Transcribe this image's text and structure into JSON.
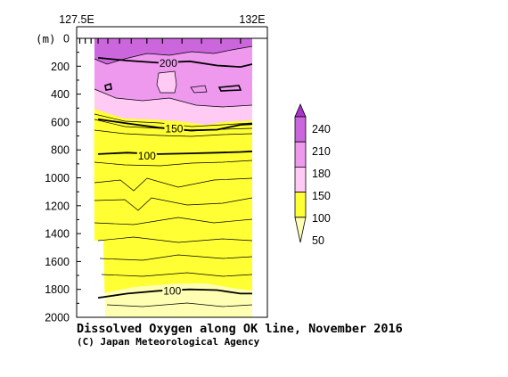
{
  "colors": {
    "band_50": "#ffffb3",
    "band_100": "#ffff33",
    "band_150": "#ffcaf3",
    "band_180": "#ee99ee",
    "band_210": "#cc66dd",
    "band_240": "#aa33cc",
    "no_data": "#ffffff",
    "axis": "#000000"
  },
  "chart_data": {
    "type": "contour",
    "title": "Dissolved Oxygen along OK line, November 2016",
    "credit": "(C) Japan Meteorological Agency",
    "x_axis": {
      "position": "top",
      "range": [
        127.5,
        132
      ],
      "labels": [
        {
          "value": 127.5,
          "label": "127.5E"
        },
        {
          "value": 132,
          "label": "132E"
        }
      ],
      "station_ticks": [
        127.58,
        127.72,
        127.87,
        128.05,
        128.3,
        128.6,
        128.9,
        129.3,
        129.7,
        130.2,
        130.7,
        131.2,
        131.7
      ]
    },
    "y_axis": {
      "unit": "(m)",
      "range": [
        0,
        2000
      ],
      "inverted": true,
      "ticks": [
        0,
        200,
        400,
        600,
        800,
        1000,
        1200,
        1400,
        1600,
        1800,
        2000
      ]
    },
    "colorbar": {
      "levels": [
        50,
        100,
        150,
        180,
        210,
        240
      ],
      "labels": [
        "50",
        "100",
        "150",
        "180",
        "210",
        "240"
      ],
      "triangle_ends": true
    },
    "contour_labels": [
      {
        "text": "200",
        "lon": 129.85,
        "depth": 180
      },
      {
        "text": "150",
        "lon": 130.0,
        "depth": 650
      },
      {
        "text": "100",
        "lon": 129.3,
        "depth": 845
      },
      {
        "text": "100",
        "lon": 129.95,
        "depth": 1810
      }
    ],
    "bold_contours": [
      {
        "value": 200,
        "depth_by_lon": [
          [
            128.05,
            140
          ],
          [
            128.8,
            160
          ],
          [
            129.6,
            175
          ],
          [
            130.4,
            165
          ],
          [
            131.1,
            195
          ],
          [
            131.7,
            205
          ],
          [
            132.0,
            185
          ]
        ]
      },
      {
        "value": 150,
        "depth_by_lon": [
          [
            128.05,
            580
          ],
          [
            128.8,
            610
          ],
          [
            129.6,
            640
          ],
          [
            130.4,
            660
          ],
          [
            131.1,
            655
          ],
          [
            131.7,
            620
          ],
          [
            132.0,
            615
          ]
        ]
      },
      {
        "value": 100,
        "depth_by_lon": [
          [
            128.05,
            830
          ],
          [
            128.8,
            820
          ],
          [
            129.6,
            830
          ],
          [
            130.4,
            825
          ],
          [
            131.1,
            820
          ],
          [
            131.7,
            815
          ],
          [
            132.0,
            810
          ]
        ]
      },
      {
        "value": 100,
        "depth_by_lon": [
          [
            128.05,
            1860
          ],
          [
            128.8,
            1830
          ],
          [
            129.6,
            1810
          ],
          [
            130.4,
            1800
          ],
          [
            131.1,
            1805
          ],
          [
            131.7,
            1830
          ],
          [
            132.0,
            1830
          ]
        ]
      }
    ]
  }
}
